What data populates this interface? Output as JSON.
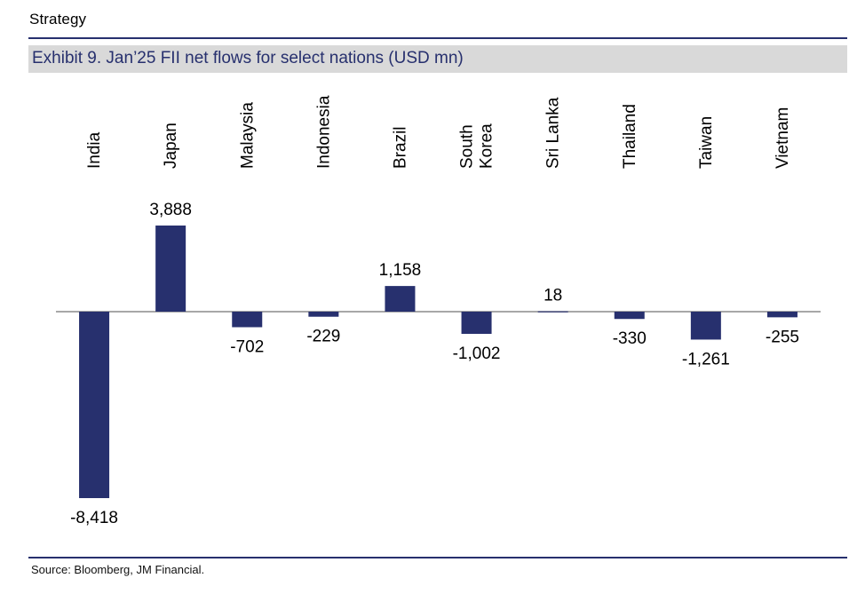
{
  "header": {
    "section": "Strategy",
    "exhibit_title": "Exhibit 9. Jan’25 FII net flows for select nations (USD mn)"
  },
  "footer": {
    "source": "Source: Bloomberg, JM Financial."
  },
  "colors": {
    "bar": "#27306e",
    "rule": "#27306e",
    "title_band": "#d9d9d9",
    "axis": "#8c8c8c"
  },
  "chart_data": {
    "type": "bar",
    "title": "Exhibit 9. Jan’25 FII net flows for select nations (USD mn)",
    "categories": [
      [
        "India"
      ],
      [
        "Japan"
      ],
      [
        "Malaysia"
      ],
      [
        "Indonesia"
      ],
      [
        "Brazil"
      ],
      [
        "South",
        "Korea"
      ],
      [
        "Sri Lanka"
      ],
      [
        "Thailand"
      ],
      [
        "Taiwan"
      ],
      [
        "Vietnam"
      ]
    ],
    "series": [
      {
        "values": [
          -8418,
          3888,
          -702,
          -229,
          1158,
          -1002,
          18,
          -330,
          -1261,
          -255
        ]
      }
    ],
    "data_labels": [
      "-8,418",
      "3,888",
      "-702",
      "-229",
      "1,158",
      "-1,002",
      "18",
      "-330",
      "-1,261",
      "-255"
    ],
    "category_label_position": "top, rotated vertical",
    "xlabel": "",
    "ylabel": "",
    "grid": false,
    "legend": "none"
  }
}
